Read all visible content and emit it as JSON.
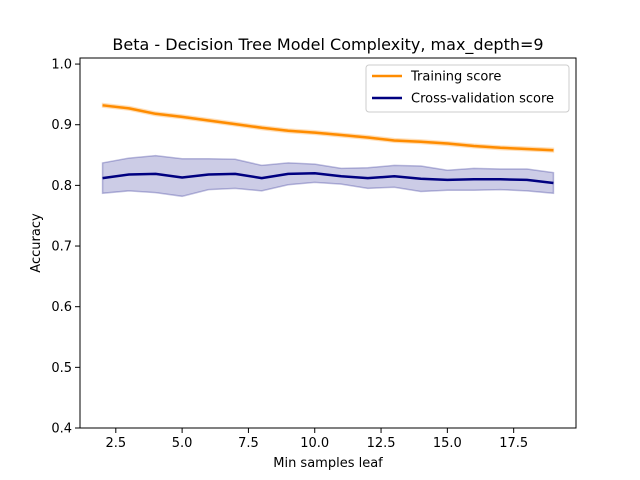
{
  "chart_data": {
    "type": "line",
    "title": "Beta - Decision Tree Model Complexity, max_depth=9",
    "xlabel": "Min samples leaf",
    "ylabel": "Accuracy",
    "xlim": [
      1.15,
      19.85
    ],
    "ylim": [
      0.4,
      1.01
    ],
    "xticks": [
      2.5,
      5.0,
      7.5,
      10.0,
      12.5,
      15.0,
      17.5
    ],
    "xtick_labels": [
      "2.5",
      "5.0",
      "7.5",
      "10.0",
      "12.5",
      "15.0",
      "17.5"
    ],
    "yticks": [
      0.4,
      0.5,
      0.6,
      0.7,
      0.8,
      0.9,
      1.0
    ],
    "ytick_labels": [
      "0.4",
      "0.5",
      "0.6",
      "0.7",
      "0.8",
      "0.9",
      "1.0"
    ],
    "grid": false,
    "legend_position": "top-right",
    "x": [
      2,
      3,
      4,
      5,
      6,
      7,
      8,
      9,
      10,
      11,
      12,
      13,
      14,
      15,
      16,
      17,
      18,
      19
    ],
    "series": [
      {
        "name": "Training score",
        "color": "#ff8c00",
        "values": [
          0.932,
          0.927,
          0.918,
          0.913,
          0.907,
          0.901,
          0.895,
          0.89,
          0.887,
          0.883,
          0.879,
          0.874,
          0.872,
          0.869,
          0.865,
          0.862,
          0.86,
          0.858
        ],
        "band_upper": [
          0.935,
          0.93,
          0.921,
          0.916,
          0.91,
          0.904,
          0.898,
          0.893,
          0.89,
          0.886,
          0.882,
          0.877,
          0.875,
          0.872,
          0.868,
          0.865,
          0.863,
          0.861
        ],
        "band_lower": [
          0.929,
          0.924,
          0.915,
          0.91,
          0.904,
          0.898,
          0.892,
          0.887,
          0.884,
          0.88,
          0.876,
          0.871,
          0.869,
          0.866,
          0.862,
          0.859,
          0.857,
          0.855
        ]
      },
      {
        "name": "Cross-validation score",
        "color": "#000080",
        "values": [
          0.812,
          0.818,
          0.819,
          0.813,
          0.818,
          0.819,
          0.812,
          0.819,
          0.82,
          0.815,
          0.812,
          0.815,
          0.811,
          0.809,
          0.81,
          0.81,
          0.809,
          0.804
        ],
        "band_upper": [
          0.837,
          0.845,
          0.849,
          0.844,
          0.844,
          0.843,
          0.833,
          0.837,
          0.835,
          0.828,
          0.829,
          0.833,
          0.832,
          0.825,
          0.828,
          0.827,
          0.827,
          0.821
        ],
        "band_lower": [
          0.787,
          0.791,
          0.788,
          0.782,
          0.793,
          0.795,
          0.791,
          0.801,
          0.805,
          0.802,
          0.795,
          0.797,
          0.79,
          0.792,
          0.792,
          0.793,
          0.791,
          0.787
        ]
      }
    ]
  }
}
